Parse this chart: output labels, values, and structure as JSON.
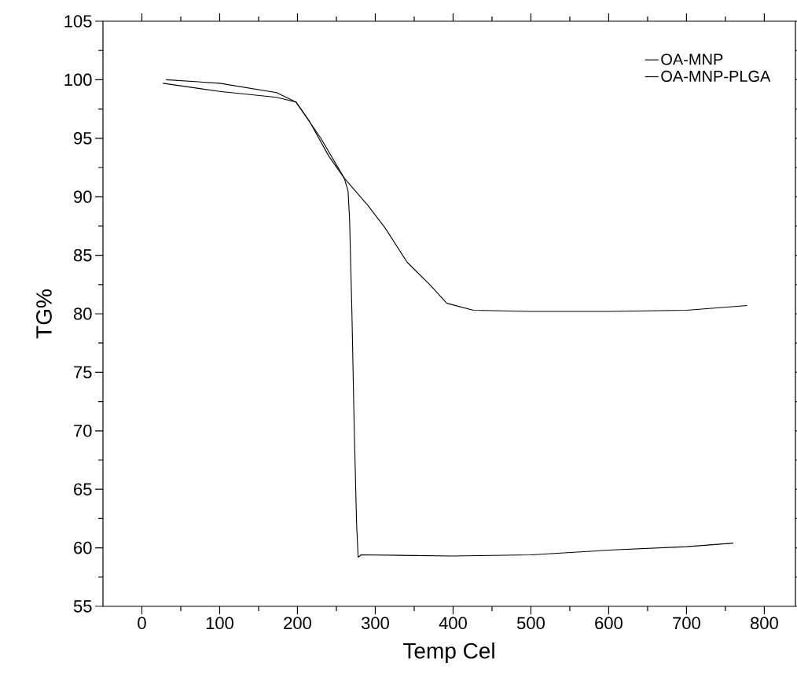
{
  "chart_data": {
    "type": "line",
    "xlabel": "Temp Cel",
    "ylabel": "TG%",
    "xlim": [
      -50,
      840
    ],
    "ylim": [
      55,
      105
    ],
    "xticks": [
      0,
      100,
      200,
      300,
      400,
      500,
      600,
      700,
      800
    ],
    "yticks": [
      55,
      60,
      65,
      70,
      75,
      80,
      85,
      90,
      95,
      100,
      105
    ],
    "legend": "top right",
    "grid": false,
    "marker": "none",
    "line_style": "solid",
    "series": [
      {
        "name": "OA-MNP",
        "color": "#000000",
        "x": [
          27,
          100,
          173,
          198,
          230,
          260,
          290,
          313,
          341,
          370,
          392,
          426,
          500,
          600,
          700,
          778
        ],
        "values": [
          99.7,
          99.0,
          98.5,
          98.1,
          95.0,
          91.6,
          89.3,
          87.3,
          84.4,
          82.5,
          80.9,
          80.3,
          80.2,
          80.2,
          80.3,
          80.7
        ]
      },
      {
        "name": "OA-MNP-PLGA",
        "color": "#000000",
        "x": [
          31,
          100,
          173,
          198,
          215,
          240,
          260,
          265,
          267,
          270,
          273,
          276,
          278,
          282,
          400,
          500,
          600,
          700,
          760
        ],
        "values": [
          100.0,
          99.7,
          98.9,
          98.1,
          96.5,
          93.5,
          91.6,
          90.5,
          88.0,
          80.0,
          70.0,
          62.0,
          59.2,
          59.4,
          59.3,
          59.4,
          59.8,
          60.1,
          60.4
        ]
      }
    ]
  }
}
